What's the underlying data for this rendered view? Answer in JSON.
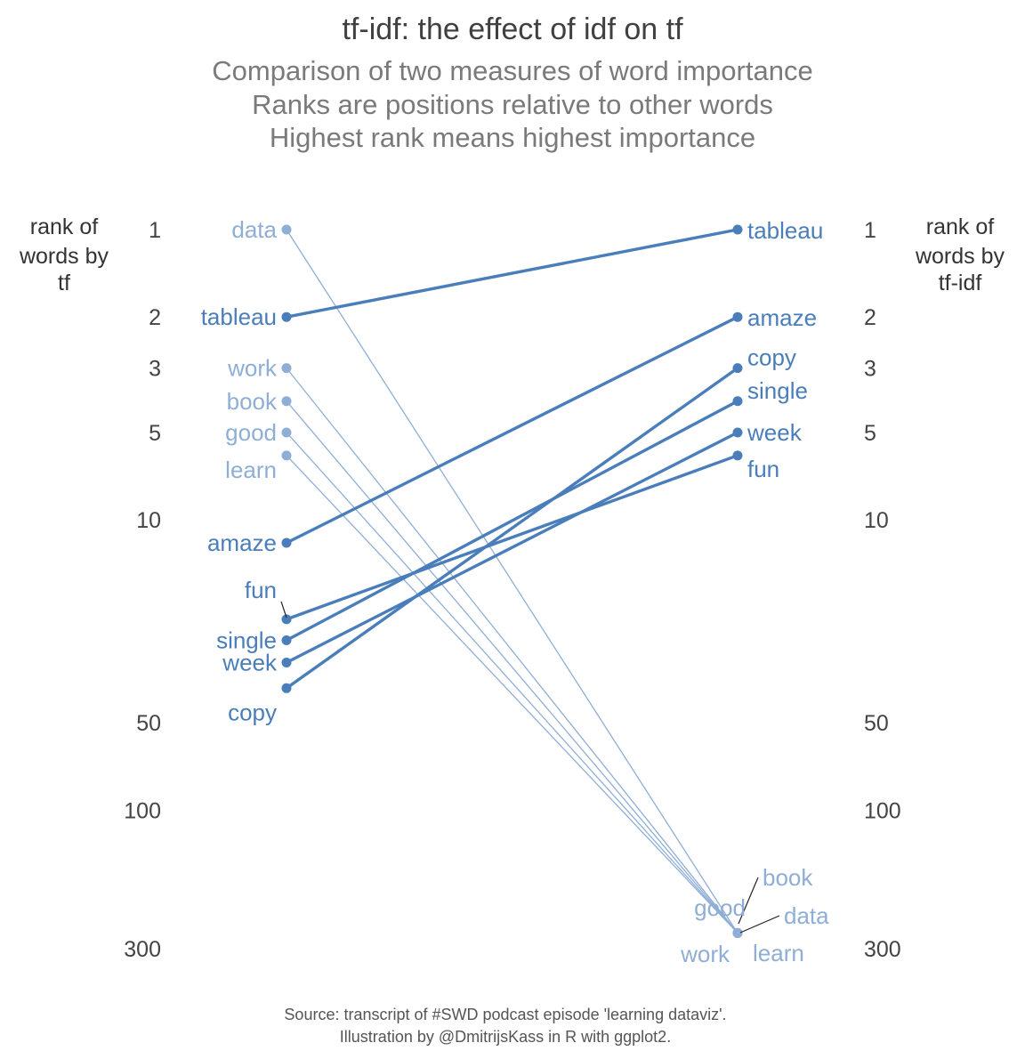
{
  "chart_data": {
    "type": "slope",
    "title": "tf-idf: the effect of idf on tf",
    "subtitle": [
      "Comparison of two measures of word importance",
      "Ranks are positions relative to other words",
      "Highest rank means highest importance"
    ],
    "left_axis_title": [
      "rank of",
      "words by",
      "tf"
    ],
    "right_axis_title": [
      "rank of",
      "words by",
      "tf-idf"
    ],
    "ticks": [
      1,
      2,
      3,
      5,
      10,
      50,
      100,
      300
    ],
    "scale": "log",
    "ylim": [
      1,
      300
    ],
    "caption": [
      "Source: transcript of #SWD podcast episode 'learning dataviz'.",
      "Illustration by @DmitrijsKass in R with ggplot2."
    ],
    "colors": {
      "rising": "#4a7ebb",
      "falling": "#8faed6"
    },
    "words": [
      {
        "word": "data",
        "tf_rank": 1,
        "tfidf_rank": 265,
        "group": "falling"
      },
      {
        "word": "tableau",
        "tf_rank": 2,
        "tfidf_rank": 1,
        "group": "rising"
      },
      {
        "word": "work",
        "tf_rank": 3,
        "tfidf_rank": 265,
        "group": "falling"
      },
      {
        "word": "book",
        "tf_rank": 3.9,
        "tfidf_rank": 265,
        "group": "falling"
      },
      {
        "word": "good",
        "tf_rank": 5,
        "tfidf_rank": 265,
        "group": "falling"
      },
      {
        "word": "learn",
        "tf_rank": 6,
        "tfidf_rank": 265,
        "group": "falling"
      },
      {
        "word": "amaze",
        "tf_rank": 12,
        "tfidf_rank": 2,
        "group": "rising"
      },
      {
        "word": "fun",
        "tf_rank": 22,
        "tfidf_rank": 6,
        "group": "rising"
      },
      {
        "word": "single",
        "tf_rank": 26,
        "tfidf_rank": 3.9,
        "group": "rising"
      },
      {
        "word": "week",
        "tf_rank": 31,
        "tfidf_rank": 5,
        "group": "rising"
      },
      {
        "word": "copy",
        "tf_rank": 38,
        "tfidf_rank": 3,
        "group": "rising"
      }
    ]
  }
}
